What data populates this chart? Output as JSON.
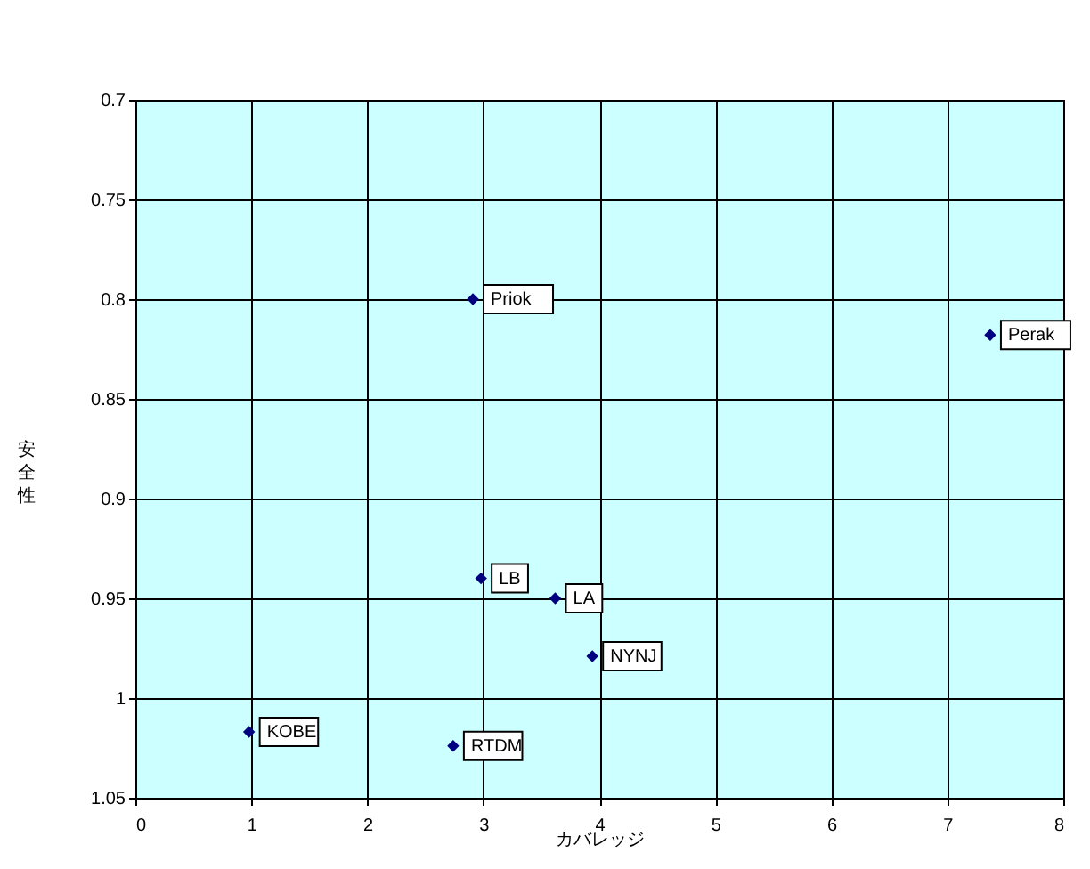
{
  "chart_data": {
    "type": "scatter",
    "xlabel": "カバレッジ",
    "ylabel": "安全性",
    "x": [
      2.91,
      7.37,
      2.98,
      3.62,
      3.94,
      0.98,
      2.74
    ],
    "series": [
      {
        "color": "#000080",
        "values": [
          0.8,
          0.818,
          0.94,
          0.95,
          0.979,
          1.017,
          1.024
        ]
      }
    ],
    "annotations": [
      {
        "text": "Priok",
        "x": 2.91,
        "y": 0.8
      },
      {
        "text": "Perak",
        "x": 7.37,
        "y": 0.818
      },
      {
        "text": "LB",
        "x": 2.98,
        "y": 0.94
      },
      {
        "text": "LA",
        "x": 3.62,
        "y": 0.95
      },
      {
        "text": "NYNJ",
        "x": 3.94,
        "y": 0.979
      },
      {
        "text": "KOBE",
        "x": 0.98,
        "y": 1.017
      },
      {
        "text": "RTDM",
        "x": 2.74,
        "y": 1.024
      }
    ],
    "xlim": [
      0,
      8
    ],
    "xticks": [
      0,
      1,
      2,
      3,
      4,
      5,
      6,
      7,
      8
    ],
    "ylim": [
      1.05,
      0.7
    ],
    "yticks": [
      0.7,
      0.75,
      0.8,
      0.85,
      0.9,
      0.95,
      1,
      1.05
    ],
    "grid": true,
    "marker": "diamond"
  }
}
